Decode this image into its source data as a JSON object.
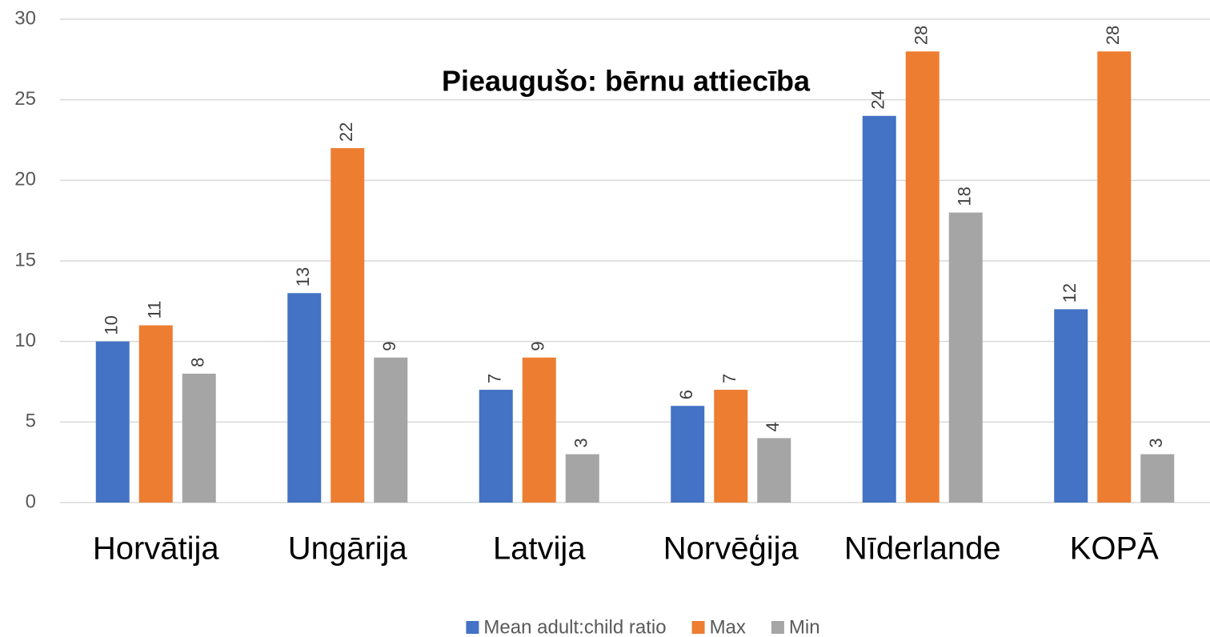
{
  "chart_data": {
    "type": "bar",
    "title": "Pieaugušo: bērnu attiecība",
    "categories": [
      "Horvātija",
      "Ungārija",
      "Latvija",
      "Norvēģija",
      "Nīderlande",
      "KOPĀ"
    ],
    "series": [
      {
        "name": "Mean adult:child ratio",
        "color": "#4472c4",
        "values": [
          10,
          13,
          7,
          6,
          24,
          12
        ]
      },
      {
        "name": "Max",
        "color": "#ed7d31",
        "values": [
          11,
          22,
          9,
          7,
          28,
          28
        ]
      },
      {
        "name": "Min",
        "color": "#a5a5a5",
        "values": [
          8,
          9,
          3,
          4,
          18,
          3
        ]
      }
    ],
    "ylim": [
      0,
      30
    ],
    "yticks": [
      0,
      5,
      10,
      15,
      20,
      25,
      30
    ],
    "grid": true,
    "legend": "bottom"
  }
}
